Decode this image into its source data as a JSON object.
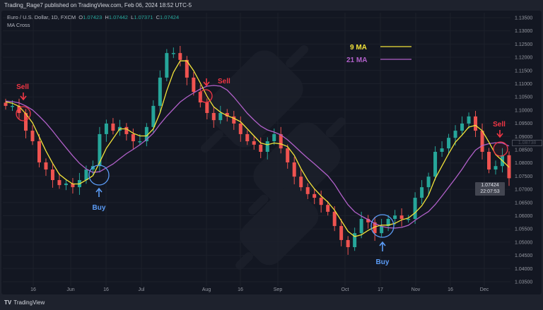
{
  "header": {
    "published": "Trading_Rage7 published on TradingView.com, Feb 06, 2024 18:52 UTC-5"
  },
  "legend": {
    "symbol": "Euro / U.S. Dollar, 1D, FXCM",
    "o_label": "O",
    "o": "1.07423",
    "h_label": "H",
    "h": "1.07442",
    "l_label": "L",
    "l": "1.07371",
    "c_label": "C",
    "c": "1.07424",
    "indicator": "MA Cross"
  },
  "price_tag": {
    "price": "1.07424",
    "countdown": "22:07:53"
  },
  "crosshair_label": "1.08738",
  "footer": {
    "brand": "TradingView"
  },
  "colors": {
    "up": "#26a69a",
    "down": "#ef5350",
    "ma9": "#f2e33a",
    "ma21": "#b160c9",
    "sell": "#f23645",
    "buy": "#5b9cf6",
    "background": "#131722"
  },
  "annotations": [
    {
      "label": "Sell",
      "type": "sell"
    },
    {
      "label": "Buy",
      "type": "buy"
    },
    {
      "label": "Sell",
      "type": "sell"
    },
    {
      "label": "Buy",
      "type": "buy"
    },
    {
      "label": "Sell",
      "type": "sell"
    }
  ],
  "chart_data": {
    "type": "candlestick",
    "title": "",
    "ylim": [
      1.035,
      1.135
    ],
    "y_ticks": [
      "1.13500",
      "1.13000",
      "1.12500",
      "1.12000",
      "1.11500",
      "1.11000",
      "1.10500",
      "1.10000",
      "1.09500",
      "1.09000",
      "1.08500",
      "1.08000",
      "1.07500",
      "1.07000",
      "1.06500",
      "1.06000",
      "1.05500",
      "1.05000",
      "1.04500",
      "1.04000",
      "1.03500"
    ],
    "x_ticks": [
      "16",
      "Jun",
      "16",
      "Jul",
      "Aug",
      "16",
      "Sep",
      "Oct",
      "17",
      "Nov",
      "16",
      "Dec"
    ],
    "grid": true,
    "legend_position": "top-center",
    "series": [
      {
        "name": "9 MA",
        "color": "#f2e33a"
      },
      {
        "name": "21 MA",
        "color": "#b160c9"
      }
    ],
    "closes": [
      1.1016,
      1.1016,
      1.0989,
      1.0922,
      1.0882,
      1.0802,
      1.0775,
      1.0735,
      1.0716,
      1.0722,
      1.0708,
      1.0735,
      1.0775,
      1.0788,
      1.0909,
      1.0949,
      1.0922,
      1.0936,
      1.0909,
      1.0882,
      1.0882,
      1.0936,
      1.1016,
      1.1123,
      1.1216,
      1.1216,
      1.119,
      1.1123,
      1.1069,
      1.1029,
      1.0989,
      1.0962,
      1.0989,
      1.0976,
      1.0949,
      1.0909,
      1.0882,
      1.0869,
      1.0842,
      1.0882,
      1.0909,
      1.0855,
      1.0802,
      1.0748,
      1.0708,
      1.0682,
      1.0668,
      1.0641,
      1.0615,
      1.0561,
      1.0508,
      1.0481,
      1.0534,
      1.0588,
      1.0575,
      1.0534,
      1.0561,
      1.0588,
      1.0601,
      1.0588,
      1.0588,
      1.0668,
      1.0708,
      1.0748,
      1.0842,
      1.0855,
      1.0895,
      1.0922,
      1.0949,
      1.0976,
      1.0922,
      1.0842,
      1.0775,
      1.0788,
      1.0829,
      1.0742
    ]
  }
}
